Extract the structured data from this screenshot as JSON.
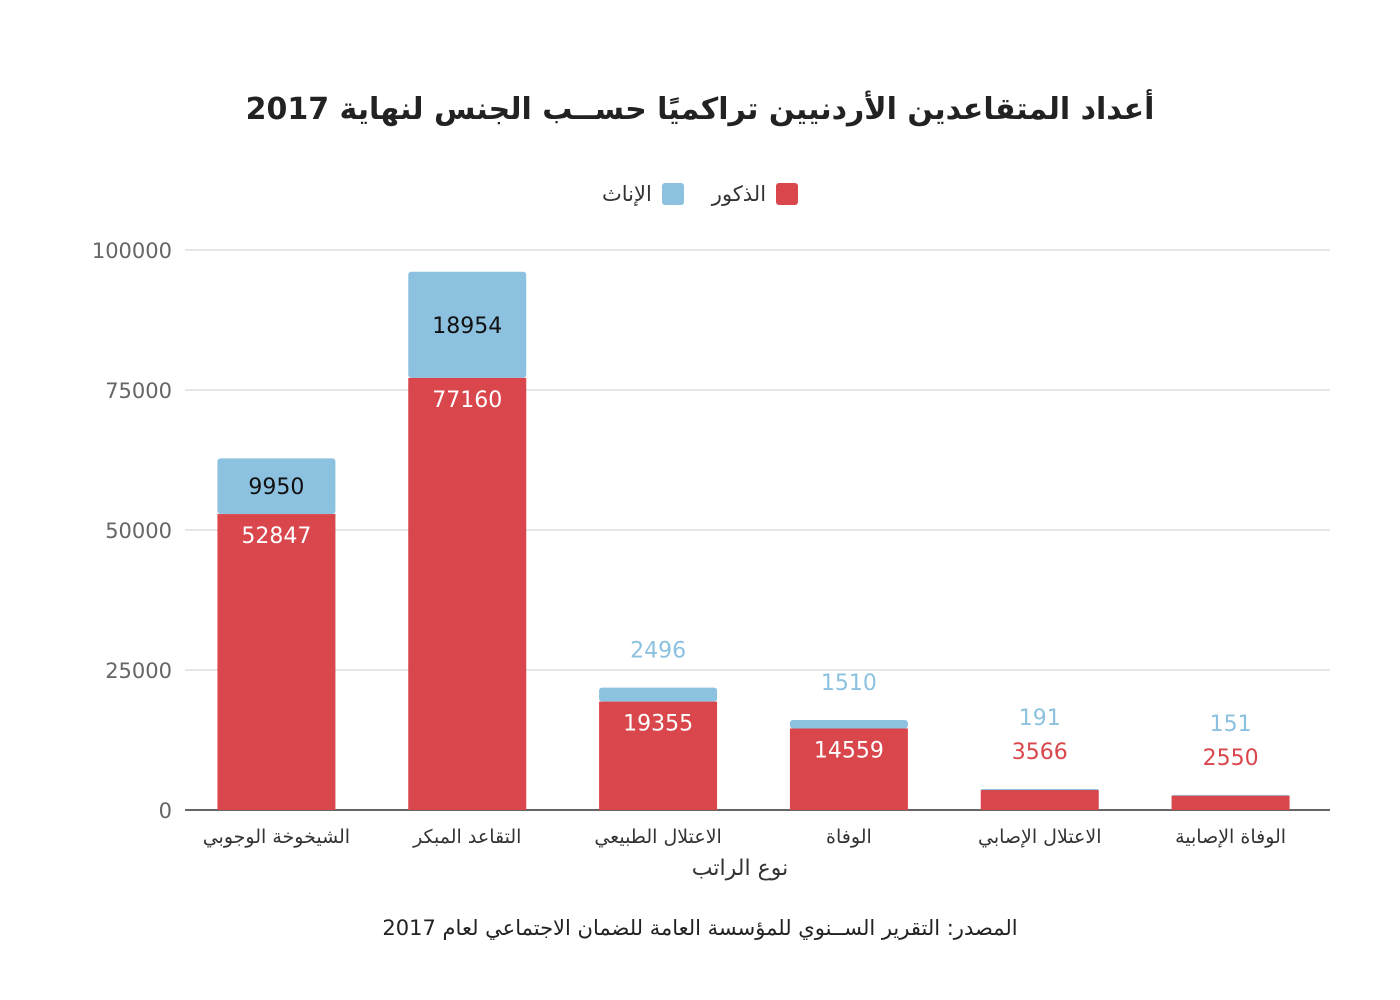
{
  "chart_data": {
    "type": "bar",
    "stacked": true,
    "title": "أعداد المتقاعدين الأردنيين تراكميًا حســب الجنس لنهاية 2017",
    "xlabel": "نوع الراتب",
    "ylabel": "",
    "ylim": [
      0,
      100000
    ],
    "yticks": [
      "0",
      "25000",
      "50000",
      "75000",
      "100000"
    ],
    "categories": [
      "الشيخوخة الوجوبي",
      "التقاعد المبكر",
      "الاعتلال الطبيعي",
      "الوفاة",
      "الاعتلال الإصابي",
      "الوفاة الإصابية"
    ],
    "series": [
      {
        "name": "الذكور",
        "color": "#d9474d",
        "values": [
          52847,
          77160,
          19355,
          14559,
          3566,
          2550
        ]
      },
      {
        "name": "الإناث",
        "color": "#8cc2e0",
        "values": [
          9950,
          18954,
          2496,
          1510,
          191,
          151
        ]
      }
    ],
    "legend_position": "top-center",
    "grid": true,
    "source": "المصدر: التقرير الســنوي للمؤسسة العامة للضمان الاجتماعي لعام 2017"
  }
}
